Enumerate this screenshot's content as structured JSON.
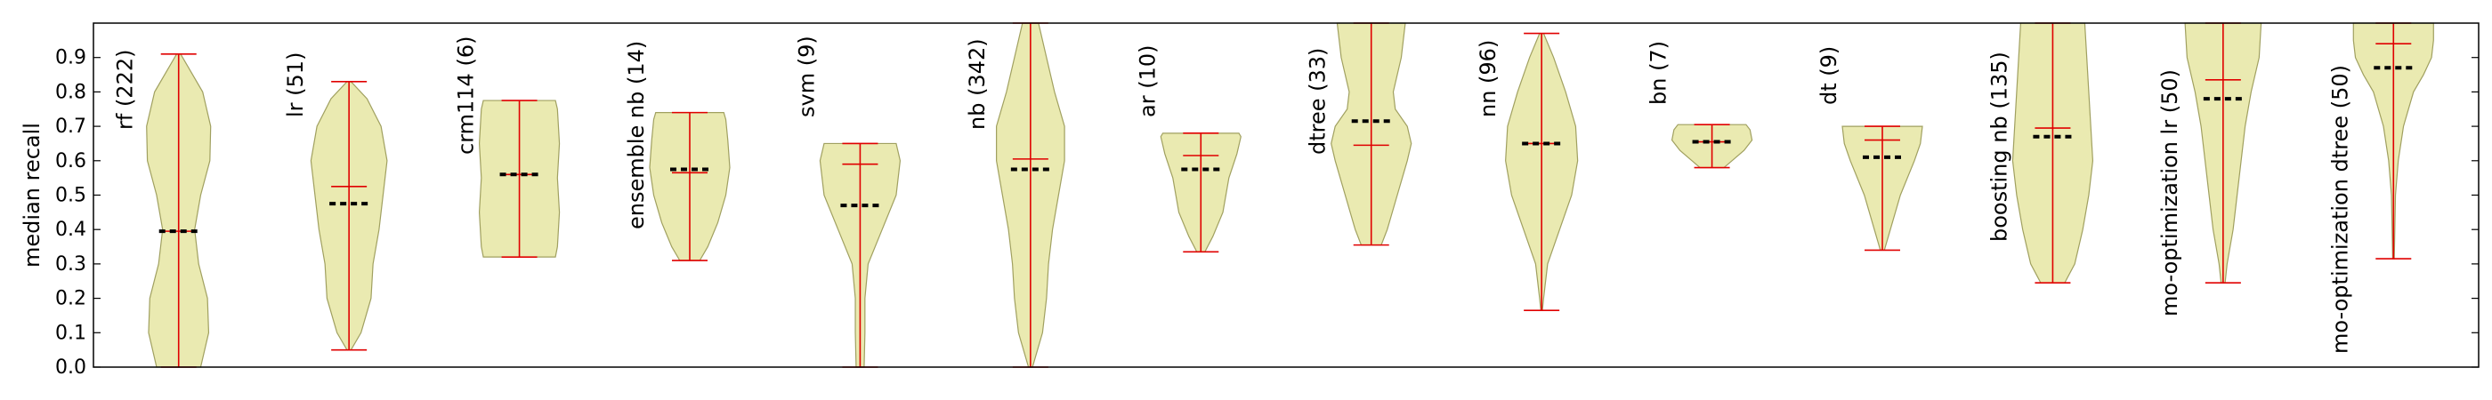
{
  "chart_data": {
    "type": "violin",
    "ylabel": "median recall",
    "ylim": [
      0.0,
      1.0
    ],
    "yticks": [
      "0.0",
      "0.1",
      "0.2",
      "0.3",
      "0.4",
      "0.5",
      "0.6",
      "0.7",
      "0.8",
      "0.9"
    ],
    "grid": false,
    "colors": {
      "body": "#e8e8a8",
      "body_edge": "#a0a060",
      "range": "#e00000",
      "median": "#000000"
    },
    "violins": [
      {
        "label": "rf (222)",
        "min": 0.0,
        "max": 0.91,
        "mean": 0.395,
        "median": 0.395,
        "profile": [
          [
            0.0,
            0.55
          ],
          [
            0.1,
            0.75
          ],
          [
            0.2,
            0.72
          ],
          [
            0.3,
            0.5
          ],
          [
            0.4,
            0.4
          ],
          [
            0.5,
            0.55
          ],
          [
            0.6,
            0.78
          ],
          [
            0.7,
            0.8
          ],
          [
            0.8,
            0.6
          ],
          [
            0.91,
            0.05
          ]
        ]
      },
      {
        "label": "lr (51)",
        "min": 0.05,
        "max": 0.83,
        "mean": 0.525,
        "median": 0.475,
        "profile": [
          [
            0.05,
            0.05
          ],
          [
            0.1,
            0.3
          ],
          [
            0.2,
            0.55
          ],
          [
            0.3,
            0.6
          ],
          [
            0.4,
            0.75
          ],
          [
            0.5,
            0.85
          ],
          [
            0.6,
            0.95
          ],
          [
            0.7,
            0.8
          ],
          [
            0.78,
            0.45
          ],
          [
            0.83,
            0.05
          ]
        ]
      },
      {
        "label": "crm114 (6)",
        "min": 0.32,
        "max": 0.775,
        "mean": 0.56,
        "median": 0.56,
        "profile": [
          [
            0.32,
            0.9
          ],
          [
            0.35,
            0.95
          ],
          [
            0.45,
            1.0
          ],
          [
            0.55,
            0.95
          ],
          [
            0.65,
            1.0
          ],
          [
            0.75,
            0.95
          ],
          [
            0.775,
            0.9
          ]
        ]
      },
      {
        "label": "ensemble nb (14)",
        "min": 0.31,
        "max": 0.74,
        "mean": 0.565,
        "median": 0.575,
        "profile": [
          [
            0.31,
            0.25
          ],
          [
            0.35,
            0.45
          ],
          [
            0.42,
            0.7
          ],
          [
            0.5,
            0.9
          ],
          [
            0.58,
            1.0
          ],
          [
            0.66,
            0.95
          ],
          [
            0.72,
            0.9
          ],
          [
            0.74,
            0.85
          ]
        ]
      },
      {
        "label": "svm (9)",
        "min": 0.0,
        "max": 0.65,
        "mean": 0.59,
        "median": 0.47,
        "profile": [
          [
            0.0,
            0.1
          ],
          [
            0.1,
            0.12
          ],
          [
            0.2,
            0.12
          ],
          [
            0.3,
            0.2
          ],
          [
            0.4,
            0.55
          ],
          [
            0.5,
            0.9
          ],
          [
            0.6,
            1.0
          ],
          [
            0.65,
            0.9
          ]
        ]
      },
      {
        "label": "nb (342)",
        "min": 0.0,
        "max": 1.0,
        "mean": 0.605,
        "median": 0.575,
        "profile": [
          [
            0.0,
            0.05
          ],
          [
            0.1,
            0.3
          ],
          [
            0.2,
            0.4
          ],
          [
            0.3,
            0.45
          ],
          [
            0.4,
            0.55
          ],
          [
            0.5,
            0.7
          ],
          [
            0.6,
            0.85
          ],
          [
            0.7,
            0.85
          ],
          [
            0.8,
            0.6
          ],
          [
            0.9,
            0.4
          ],
          [
            1.0,
            0.2
          ]
        ]
      },
      {
        "label": "ar (10)",
        "min": 0.335,
        "max": 0.68,
        "mean": 0.615,
        "median": 0.575,
        "profile": [
          [
            0.335,
            0.1
          ],
          [
            0.38,
            0.3
          ],
          [
            0.45,
            0.55
          ],
          [
            0.55,
            0.7
          ],
          [
            0.62,
            0.9
          ],
          [
            0.67,
            1.0
          ],
          [
            0.68,
            0.95
          ]
        ]
      },
      {
        "label": "dtree (33)",
        "min": 0.355,
        "max": 1.0,
        "mean": 0.645,
        "median": 0.715,
        "profile": [
          [
            0.355,
            0.25
          ],
          [
            0.4,
            0.4
          ],
          [
            0.5,
            0.65
          ],
          [
            0.6,
            0.9
          ],
          [
            0.65,
            1.0
          ],
          [
            0.7,
            0.9
          ],
          [
            0.75,
            0.6
          ],
          [
            0.8,
            0.55
          ],
          [
            0.9,
            0.75
          ],
          [
            1.0,
            0.85
          ]
        ]
      },
      {
        "label": "nn (96)",
        "min": 0.165,
        "max": 0.97,
        "mean": 0.65,
        "median": 0.65,
        "profile": [
          [
            0.165,
            0.02
          ],
          [
            0.2,
            0.05
          ],
          [
            0.3,
            0.15
          ],
          [
            0.4,
            0.45
          ],
          [
            0.5,
            0.75
          ],
          [
            0.6,
            0.9
          ],
          [
            0.7,
            0.85
          ],
          [
            0.8,
            0.6
          ],
          [
            0.9,
            0.3
          ],
          [
            0.97,
            0.05
          ]
        ]
      },
      {
        "label": "bn (7)",
        "min": 0.58,
        "max": 0.705,
        "mean": 0.655,
        "median": 0.655,
        "profile": [
          [
            0.58,
            0.3
          ],
          [
            0.6,
            0.5
          ],
          [
            0.63,
            0.8
          ],
          [
            0.66,
            1.0
          ],
          [
            0.69,
            0.95
          ],
          [
            0.705,
            0.85
          ]
        ]
      },
      {
        "label": "dt (9)",
        "min": 0.34,
        "max": 0.7,
        "mean": 0.66,
        "median": 0.61,
        "profile": [
          [
            0.34,
            0.05
          ],
          [
            0.4,
            0.2
          ],
          [
            0.5,
            0.45
          ],
          [
            0.6,
            0.8
          ],
          [
            0.65,
            0.95
          ],
          [
            0.7,
            1.0
          ]
        ]
      },
      {
        "label": "boosting nb (135)",
        "min": 0.245,
        "max": 1.0,
        "mean": 0.695,
        "median": 0.67,
        "profile": [
          [
            0.245,
            0.3
          ],
          [
            0.3,
            0.55
          ],
          [
            0.4,
            0.75
          ],
          [
            0.5,
            0.9
          ],
          [
            0.6,
            1.0
          ],
          [
            0.7,
            0.95
          ],
          [
            0.8,
            0.9
          ],
          [
            0.9,
            0.85
          ],
          [
            1.0,
            0.8
          ]
        ]
      },
      {
        "label": "mo-optimization lr (50)",
        "min": 0.245,
        "max": 1.0,
        "mean": 0.835,
        "median": 0.78,
        "profile": [
          [
            0.245,
            0.05
          ],
          [
            0.3,
            0.1
          ],
          [
            0.4,
            0.25
          ],
          [
            0.5,
            0.35
          ],
          [
            0.6,
            0.45
          ],
          [
            0.7,
            0.55
          ],
          [
            0.8,
            0.7
          ],
          [
            0.9,
            0.9
          ],
          [
            1.0,
            0.95
          ]
        ]
      },
      {
        "label": "mo-optimization dtree (50)",
        "min": 0.315,
        "max": 1.0,
        "mean": 0.94,
        "median": 0.87,
        "profile": [
          [
            0.315,
            0.02
          ],
          [
            0.5,
            0.05
          ],
          [
            0.6,
            0.12
          ],
          [
            0.7,
            0.25
          ],
          [
            0.8,
            0.5
          ],
          [
            0.85,
            0.75
          ],
          [
            0.9,
            0.95
          ],
          [
            0.95,
            1.0
          ],
          [
            1.0,
            1.0
          ]
        ]
      }
    ]
  }
}
